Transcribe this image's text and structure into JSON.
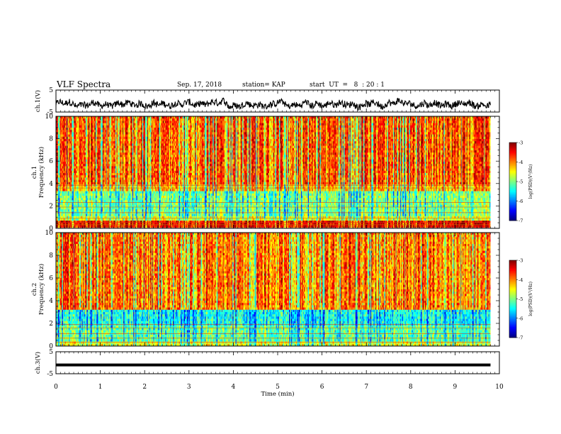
{
  "header": {
    "title": "VLF Spectra",
    "date": "Sep. 17, 2018",
    "station": "station= KAP",
    "start": "start  UT  =   8  : 20 : 1"
  },
  "chart_data": [
    {
      "type": "line",
      "panel": "ch1-waveform",
      "ylabel": "ch.1(V)",
      "ylim": [
        -5,
        5
      ],
      "yticks": [
        "5",
        "-5"
      ],
      "xlim": [
        0,
        10
      ],
      "description_values": {
        "mean": -1.5,
        "amplitude": 1.5,
        "data_end_min": 9.8
      }
    },
    {
      "type": "heatmap",
      "panel": "ch1-spectrogram",
      "ylabel": "ch.1\nFrequency  (kHz)",
      "ylim": [
        0,
        10
      ],
      "yticks": [
        "0",
        "2",
        "4",
        "6",
        "8",
        "10"
      ],
      "xlim": [
        0,
        10
      ],
      "data_end_min": 9.8,
      "colorbar": {
        "label": "log(PSD)(V²/Hz)",
        "range": [
          -7,
          -3
        ],
        "ticks": [
          "-3",
          "-4",
          "-5",
          "-6",
          "-7"
        ]
      },
      "bands_logpsd": [
        {
          "from_khz": 0.0,
          "to_khz": 0.6,
          "level": -3.4
        },
        {
          "from_khz": 0.6,
          "to_khz": 1.0,
          "level": -4.6
        },
        {
          "from_khz": 1.0,
          "to_khz": 3.4,
          "level": -5.0
        },
        {
          "from_khz": 3.4,
          "to_khz": 3.9,
          "level": -4.2
        },
        {
          "from_khz": 3.9,
          "to_khz": 10.0,
          "level": -3.8
        }
      ]
    },
    {
      "type": "heatmap",
      "panel": "ch2-spectrogram",
      "ylabel": "ch.2\nFrequency  (kHz)",
      "ylim": [
        0,
        10
      ],
      "yticks": [
        "0",
        "2",
        "4",
        "6",
        "8",
        "10"
      ],
      "xlim": [
        0,
        10
      ],
      "data_end_min": 9.8,
      "colorbar": {
        "label": "log(PSD)(V²/Hz)",
        "range": [
          -7,
          -3
        ],
        "ticks": [
          "-3",
          "-4",
          "-5",
          "-6",
          "-7"
        ]
      },
      "bands_logpsd": [
        {
          "from_khz": 0.0,
          "to_khz": 0.4,
          "level": -4.6
        },
        {
          "from_khz": 0.4,
          "to_khz": 1.8,
          "level": -5.1
        },
        {
          "from_khz": 1.8,
          "to_khz": 3.2,
          "level": -5.4
        },
        {
          "from_khz": 3.2,
          "to_khz": 10.0,
          "level": -3.9
        }
      ]
    },
    {
      "type": "line",
      "panel": "ch3-waveform",
      "ylabel": "ch.3(V)",
      "ylim": [
        -5,
        5
      ],
      "yticks": [
        "5",
        "-5"
      ],
      "xlim": [
        0,
        10
      ],
      "xlabel": "Time  (min)",
      "xticks": [
        "0",
        "1",
        "2",
        "3",
        "4",
        "5",
        "6",
        "7",
        "8",
        "9",
        "10"
      ],
      "description_values": {
        "constant": -1.0,
        "data_end_min": 9.8
      }
    }
  ]
}
